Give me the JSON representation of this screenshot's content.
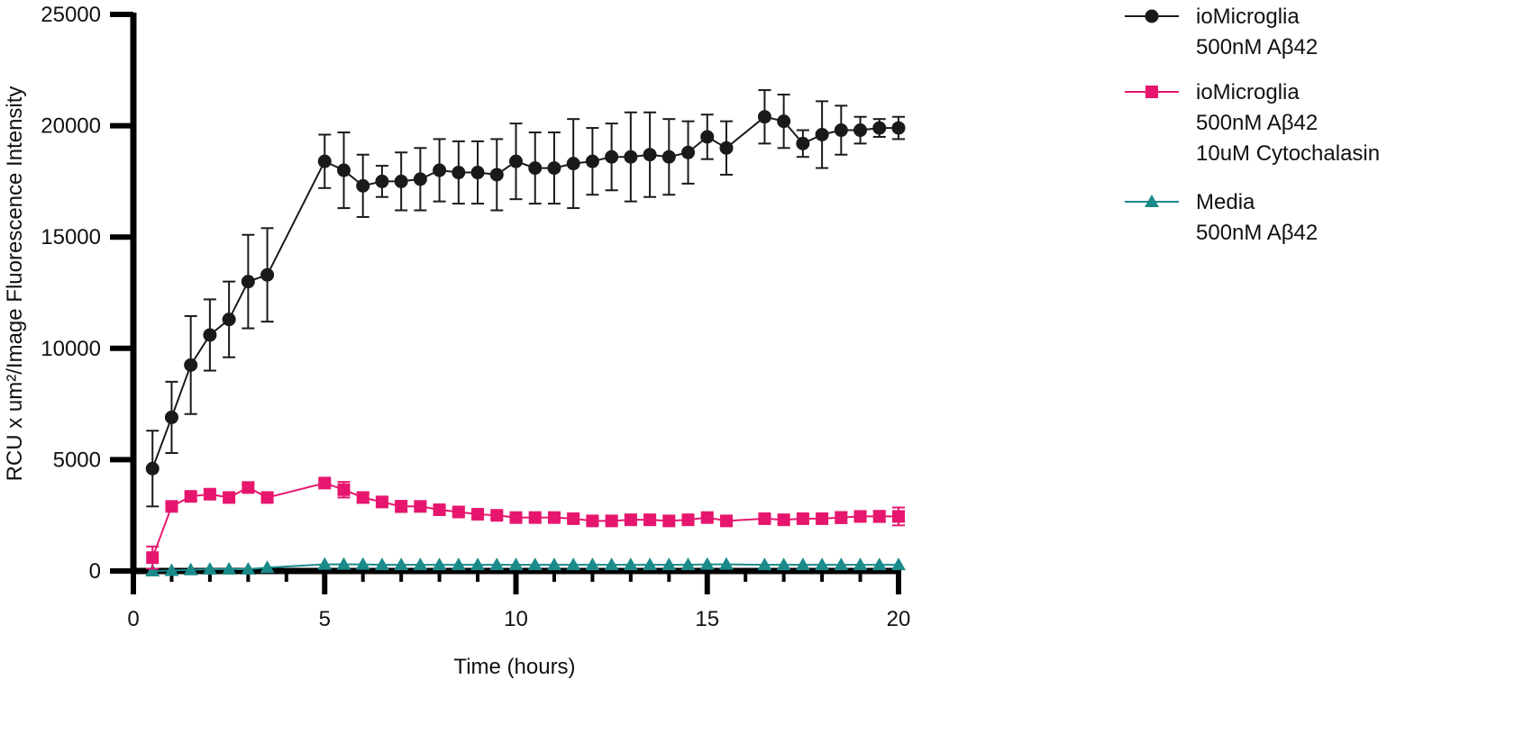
{
  "chart_data": {
    "type": "line",
    "title": "",
    "xlabel": "Time (hours)",
    "ylabel": "RCU x um²/Image Fluorescence Intensity",
    "xlim": [
      0,
      20
    ],
    "ylim": [
      0,
      25000
    ],
    "x_ticks": [
      0,
      5,
      10,
      15,
      20
    ],
    "y_ticks": [
      0,
      5000,
      10000,
      15000,
      20000,
      25000
    ],
    "grid": false,
    "legend_position": "top-right",
    "series": [
      {
        "name": "ioMicroglia 500nM Aβ42",
        "legend_lines": [
          "ioMicroglia",
          "500nM Aβ42"
        ],
        "color": "#1a1a1a",
        "marker": "circle",
        "x": [
          0.5,
          1,
          1.5,
          2,
          2.5,
          3,
          3.5,
          5,
          5.5,
          6,
          6.5,
          7,
          7.5,
          8,
          8.5,
          9,
          9.5,
          10,
          10.5,
          11,
          11.5,
          12,
          12.5,
          13,
          13.5,
          14,
          14.5,
          15,
          15.5,
          16.5,
          17,
          17.5,
          18,
          18.5,
          19,
          19.5,
          20
        ],
        "y": [
          4600,
          6900,
          9250,
          10600,
          11300,
          13000,
          13300,
          18400,
          18000,
          17300,
          17500,
          17500,
          17600,
          18000,
          17900,
          17900,
          17800,
          18400,
          18100,
          18100,
          18300,
          18400,
          18600,
          18600,
          18700,
          18600,
          18800,
          19500,
          19000,
          20400,
          20200,
          19200,
          19600,
          19800,
          19800,
          19900,
          19900
        ],
        "err": [
          1700,
          1600,
          2200,
          1600,
          1700,
          2100,
          2100,
          1200,
          1700,
          1400,
          700,
          1300,
          1400,
          1400,
          1400,
          1400,
          1600,
          1700,
          1600,
          1600,
          2000,
          1500,
          1500,
          2000,
          1900,
          1700,
          1400,
          1000,
          1200,
          1200,
          1200,
          600,
          1500,
          1100,
          600,
          400,
          500
        ]
      },
      {
        "name": "ioMicroglia 500nM Aβ42 10uM Cytochalasin",
        "legend_lines": [
          "ioMicroglia",
          "500nM Aβ42",
          "10uM Cytochalasin"
        ],
        "color": "#e6166e",
        "marker": "square",
        "x": [
          0.5,
          1,
          1.5,
          2,
          2.5,
          3,
          3.5,
          5,
          5.5,
          6,
          6.5,
          7,
          7.5,
          8,
          8.5,
          9,
          9.5,
          10,
          10.5,
          11,
          11.5,
          12,
          12.5,
          13,
          13.5,
          14,
          14.5,
          15,
          15.5,
          16.5,
          17,
          17.5,
          18,
          18.5,
          19,
          19.5,
          20
        ],
        "y": [
          600,
          2900,
          3350,
          3450,
          3300,
          3750,
          3300,
          3950,
          3650,
          3300,
          3100,
          2900,
          2900,
          2750,
          2650,
          2550,
          2500,
          2400,
          2400,
          2400,
          2350,
          2250,
          2250,
          2300,
          2300,
          2250,
          2300,
          2400,
          2250,
          2350,
          2300,
          2350,
          2350,
          2400,
          2450,
          2450,
          2450
        ],
        "err": [
          500,
          150,
          150,
          150,
          150,
          150,
          150,
          150,
          350,
          200,
          200,
          250,
          200,
          150,
          150,
          150,
          150,
          150,
          150,
          150,
          150,
          150,
          150,
          150,
          150,
          150,
          150,
          150,
          150,
          150,
          150,
          150,
          150,
          250,
          150,
          250,
          400
        ]
      },
      {
        "name": "Media 500nM Aβ42",
        "legend_lines": [
          "Media",
          "500nM Aβ42"
        ],
        "color": "#1a8a8a",
        "marker": "triangle",
        "x": [
          0.5,
          1,
          1.5,
          2,
          2.5,
          3,
          3.5,
          5,
          5.5,
          6,
          6.5,
          7,
          7.5,
          8,
          8.5,
          9,
          9.5,
          10,
          10.5,
          11,
          11.5,
          12,
          12.5,
          13,
          13.5,
          14,
          14.5,
          15,
          15.5,
          16.5,
          17,
          17.5,
          18,
          18.5,
          19,
          19.5,
          20
        ],
        "y": [
          0,
          20,
          50,
          80,
          80,
          80,
          150,
          300,
          300,
          300,
          280,
          280,
          280,
          280,
          280,
          280,
          280,
          280,
          280,
          280,
          280,
          280,
          280,
          280,
          280,
          280,
          280,
          300,
          300,
          280,
          280,
          280,
          280,
          280,
          280,
          280,
          280
        ],
        "err": [
          0,
          0,
          0,
          0,
          0,
          0,
          0,
          0,
          0,
          0,
          0,
          0,
          0,
          0,
          0,
          0,
          0,
          0,
          0,
          0,
          0,
          0,
          0,
          0,
          0,
          0,
          0,
          0,
          0,
          0,
          0,
          0,
          0,
          0,
          0,
          0,
          0
        ]
      }
    ]
  }
}
